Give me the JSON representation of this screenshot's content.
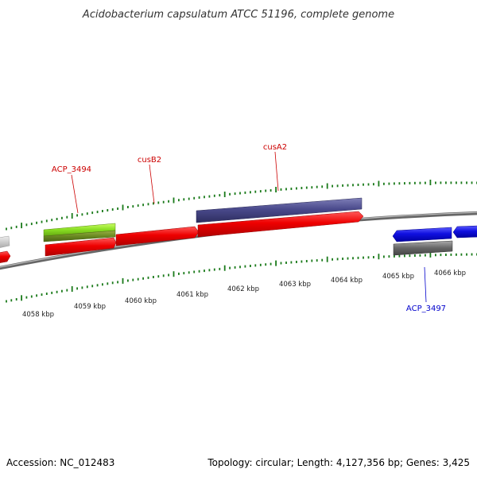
{
  "title": "Acidobacterium capsulatum ATCC 51196, complete genome",
  "footer": {
    "accession": "Accession: NC_012483",
    "stats": "Topology: circular; Length: 4,127,356 bp; Genes: 3,425"
  },
  "scale_labels": [
    "4058 kbp",
    "4059 kbp",
    "4060 kbp",
    "4061 kbp",
    "4062 kbp",
    "4063 kbp",
    "4064 kbp",
    "4065 kbp",
    "4066 kbp"
  ],
  "gene_labels": [
    {
      "name": "ACP_3494",
      "color": "#cc0000"
    },
    {
      "name": "cusB2",
      "color": "#cc0000"
    },
    {
      "name": "cusA2",
      "color": "#cc0000"
    },
    {
      "name": "ACP_3497",
      "color": "#0000cc"
    }
  ],
  "colors": {
    "backbone": "#888888",
    "tick": "#1a7a1a",
    "gene_red": "#ee0000",
    "gene_blue": "#1010e0",
    "gene_purple": "#4a4a8c",
    "gene_lime": "#88dd22",
    "gene_olive": "#6a8a22",
    "gene_gray": "#666666"
  }
}
